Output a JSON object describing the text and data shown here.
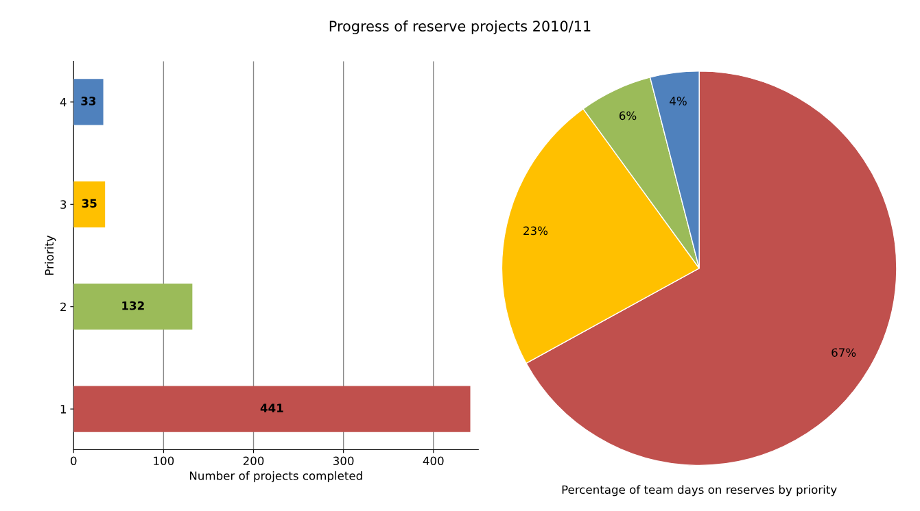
{
  "chart_data": [
    {
      "type": "bar",
      "title": "Progress of reserve projects 2010/11",
      "orientation": "horizontal",
      "xlabel": "Number of projects completed",
      "ylabel": "Priority",
      "categories": [
        "4",
        "3",
        "2",
        "1"
      ],
      "values": [
        33,
        35,
        132,
        441
      ],
      "colors": [
        "#4f81bd",
        "#ffc000",
        "#9bbb59",
        "#c0504d"
      ],
      "xlim": [
        0,
        450
      ],
      "xticks": [
        0,
        100,
        200,
        300,
        400
      ],
      "grid": "x",
      "data_labels": true
    },
    {
      "type": "pie",
      "xlabel": "Percentage of team days on reserves by priority",
      "categories": [
        null,
        null,
        null,
        null
      ],
      "values": [
        67,
        23,
        6,
        4
      ],
      "colors": [
        "#c0504d",
        "#ffc000",
        "#9bbb59",
        "#4f81bd"
      ],
      "value_labels": [
        "67%",
        "23%",
        "6%",
        "4%"
      ]
    }
  ]
}
